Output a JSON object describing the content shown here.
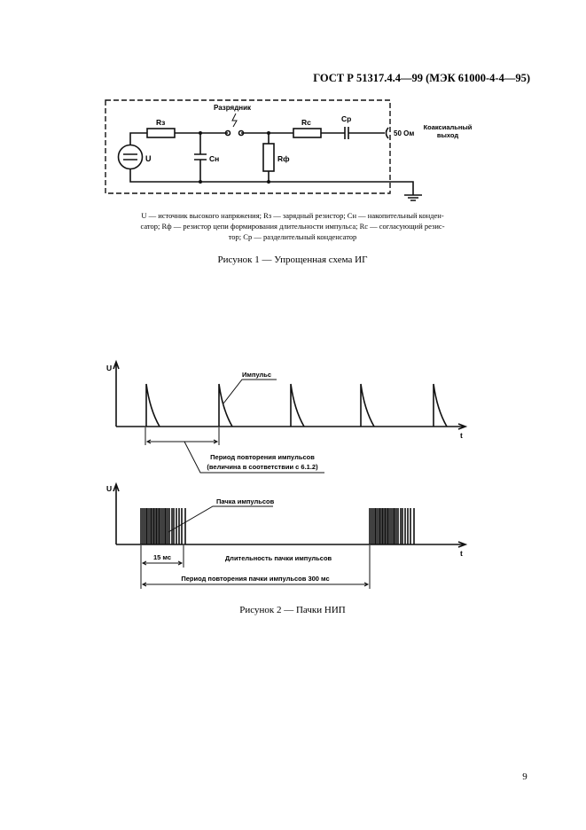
{
  "header": {
    "doc_id": "ГОСТ Р 51317.4.4—99 (МЭК 61000-4-4—95)"
  },
  "figure1": {
    "labels": {
      "spark_gap": "Разрядник",
      "r_charge": "Rз",
      "c_storage": "Cн",
      "r_shape": "Rф",
      "r_match": "Rс",
      "c_coupling": "Cр",
      "source": "U",
      "impedance": "50 Ом",
      "output_line1": "Коаксиальный",
      "output_line2": "выход"
    },
    "legend_lines": [
      "U — источник высокого напряжения; Rз — зарядный резистор; Cн — накопительный конден-",
      "сатор; Rф — резистор цепи формирования длительности импульса; Rс — согласующий резис-",
      "тор; Cр — разделительный конденсатор"
    ],
    "caption": "Рисунок 1 — Упрощенная схема ИГ"
  },
  "figure2": {
    "top": {
      "y_axis": "U",
      "x_axis": "t",
      "pulse_label": "Импульс",
      "period_line1": "Период повторения импульсов",
      "period_line2": "(величина в соответствии с 6.1.2)"
    },
    "bottom": {
      "y_axis": "U",
      "x_axis": "t",
      "burst_label": "Пачка импульсов",
      "burst_duration_value": "15 мс",
      "burst_duration_label": "Длительность пачки импульсов",
      "burst_period": "Период повторения пачки импульсов 300 мс"
    },
    "caption": "Рисунок 2 — Пачки НИП"
  },
  "footer": {
    "page_number": "9"
  }
}
